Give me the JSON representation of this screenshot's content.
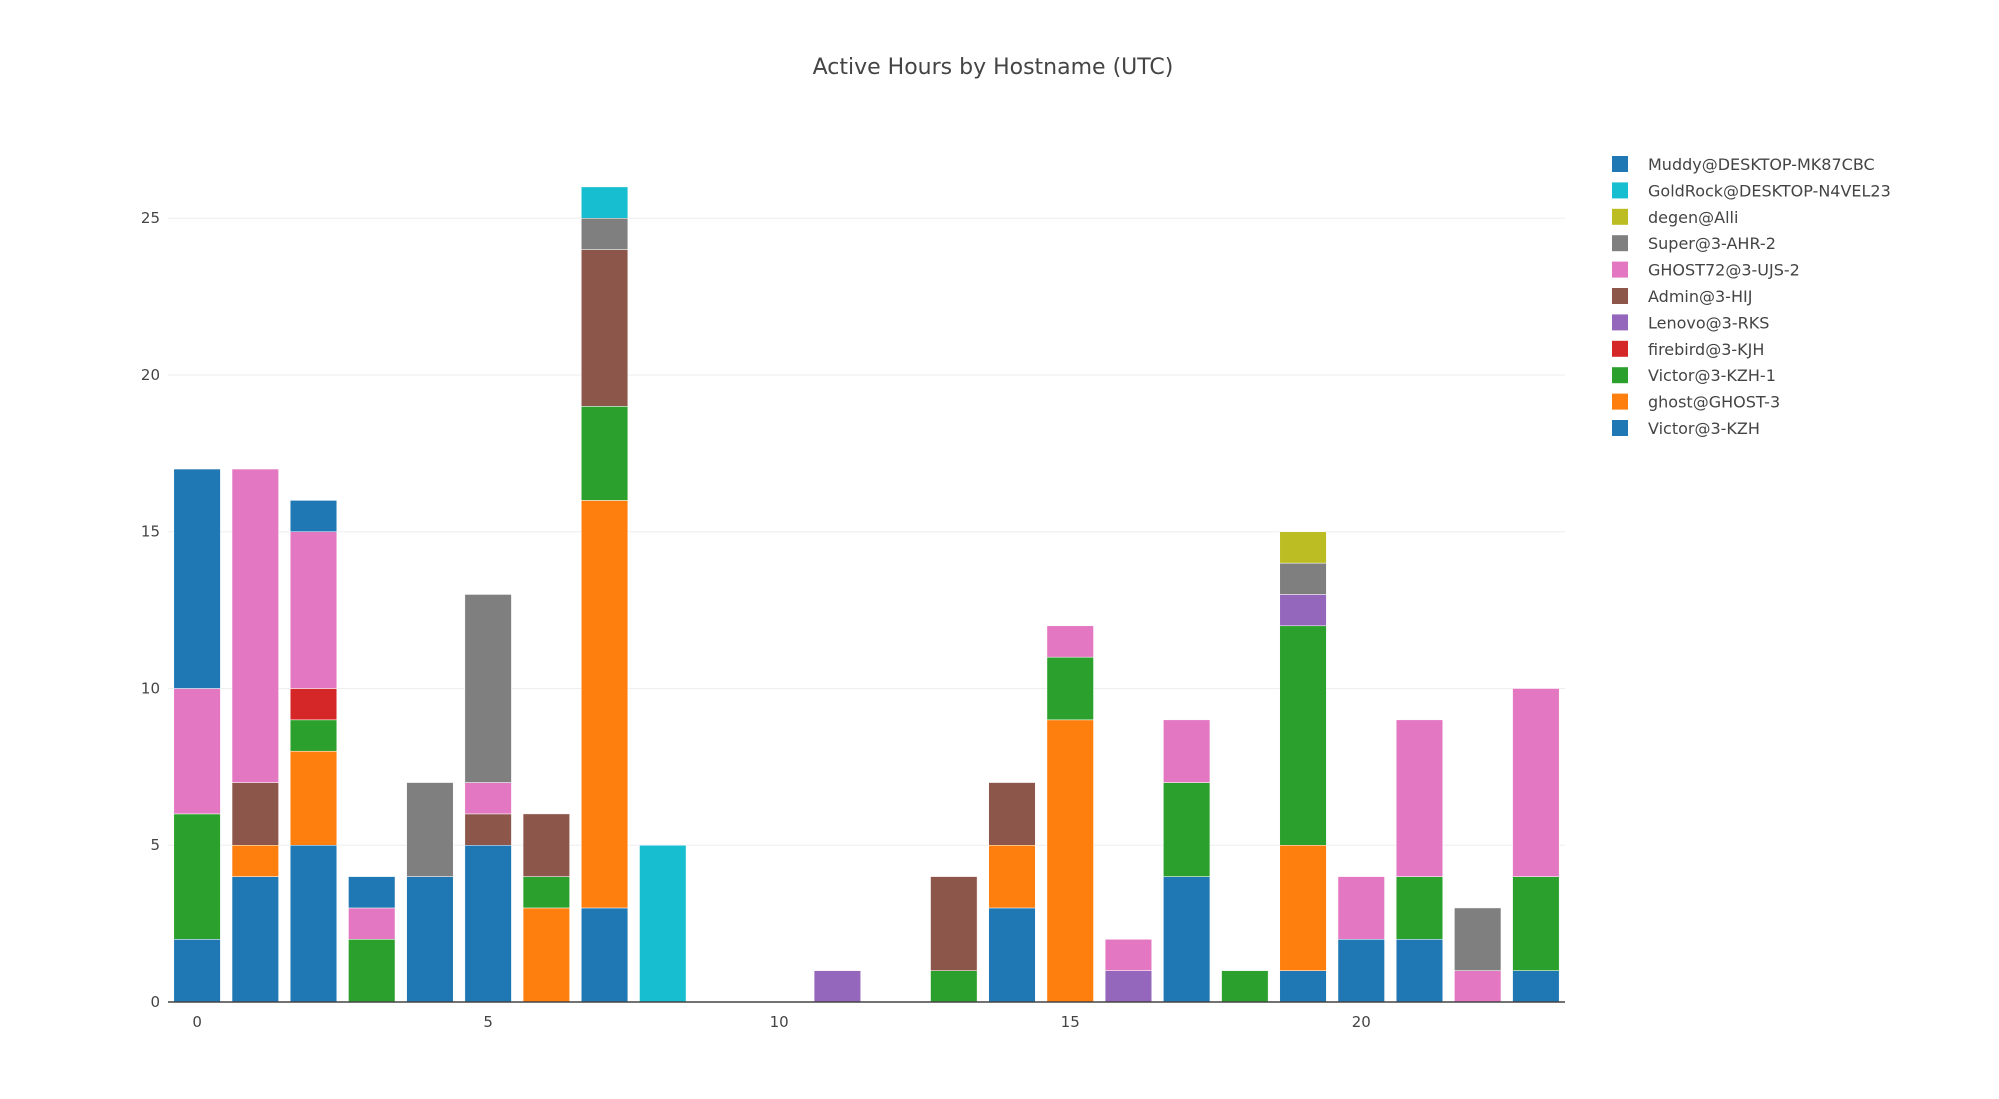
{
  "chart_data": {
    "type": "bar",
    "barmode": "stack",
    "title": "Active Hours by Hostname (UTC)",
    "xlabel": "",
    "ylabel": "",
    "x": [
      0,
      1,
      2,
      3,
      4,
      5,
      6,
      7,
      8,
      9,
      10,
      11,
      12,
      13,
      14,
      15,
      16,
      17,
      18,
      19,
      20,
      21,
      22,
      23
    ],
    "xlim": [
      -0.5,
      23.5
    ],
    "ylim": [
      0,
      27.4
    ],
    "xticks": [
      0,
      5,
      10,
      15,
      20
    ],
    "yticks": [
      0,
      5,
      10,
      15,
      20,
      25
    ],
    "grid": true,
    "legend_position": "right",
    "series": [
      {
        "name": "Victor@3-KZH",
        "color": "#1f77b4",
        "values": [
          2,
          4,
          5,
          0,
          4,
          5,
          0,
          3,
          0,
          0,
          0,
          0,
          0,
          0,
          3,
          0,
          0,
          4,
          0,
          1,
          2,
          2,
          0,
          1
        ]
      },
      {
        "name": "ghost@GHOST-3",
        "color": "#ff7f0e",
        "values": [
          0,
          1,
          3,
          0,
          0,
          0,
          3,
          13,
          0,
          0,
          0,
          0,
          0,
          0,
          2,
          9,
          0,
          0,
          0,
          4,
          0,
          0,
          0,
          0
        ]
      },
      {
        "name": "Victor@3-KZH-1",
        "color": "#2ca02c",
        "values": [
          4,
          0,
          1,
          2,
          0,
          0,
          1,
          3,
          0,
          0,
          0,
          0,
          0,
          1,
          0,
          2,
          0,
          3,
          1,
          7,
          0,
          2,
          0,
          3
        ]
      },
      {
        "name": "firebird@3-KJH",
        "color": "#d62728",
        "values": [
          0,
          0,
          1,
          0,
          0,
          0,
          0,
          0,
          0,
          0,
          0,
          0,
          0,
          0,
          0,
          0,
          0,
          0,
          0,
          0,
          0,
          0,
          0,
          0
        ]
      },
      {
        "name": "Lenovo@3-RKS",
        "color": "#9467bd",
        "values": [
          0,
          0,
          0,
          0,
          0,
          0,
          0,
          0,
          0,
          0,
          0,
          1,
          0,
          0,
          0,
          0,
          1,
          0,
          0,
          1,
          0,
          0,
          0,
          0
        ]
      },
      {
        "name": "Admin@3-HIJ",
        "color": "#8c564b",
        "values": [
          0,
          2,
          0,
          0,
          0,
          1,
          2,
          5,
          0,
          0,
          0,
          0,
          0,
          3,
          2,
          0,
          0,
          0,
          0,
          0,
          0,
          0,
          0,
          0
        ]
      },
      {
        "name": "GHOST72@3-UJS-2",
        "color": "#e377c2",
        "values": [
          4,
          10,
          5,
          1,
          0,
          1,
          0,
          0,
          0,
          0,
          0,
          0,
          0,
          0,
          0,
          1,
          1,
          2,
          0,
          0,
          2,
          5,
          1,
          6
        ]
      },
      {
        "name": "Super@3-AHR-2",
        "color": "#7f7f7f",
        "values": [
          0,
          0,
          0,
          0,
          3,
          6,
          0,
          1,
          0,
          0,
          0,
          0,
          0,
          0,
          0,
          0,
          0,
          0,
          0,
          1,
          0,
          0,
          2,
          0
        ]
      },
      {
        "name": "degen@Alli",
        "color": "#bcbd22",
        "values": [
          0,
          0,
          0,
          0,
          0,
          0,
          0,
          0,
          0,
          0,
          0,
          0,
          0,
          0,
          0,
          0,
          0,
          0,
          0,
          1,
          0,
          0,
          0,
          0
        ]
      },
      {
        "name": "GoldRock@DESKTOP-N4VEL23",
        "color": "#17becf",
        "values": [
          0,
          0,
          0,
          0,
          0,
          0,
          0,
          1,
          5,
          0,
          0,
          0,
          0,
          0,
          0,
          0,
          0,
          0,
          0,
          0,
          0,
          0,
          0,
          0
        ]
      },
      {
        "name": "Muddy@DESKTOP-MK87CBC",
        "color": "#1f77b4",
        "values": [
          7,
          0,
          1,
          1,
          0,
          0,
          0,
          0,
          0,
          0,
          0,
          0,
          0,
          0,
          0,
          0,
          0,
          0,
          0,
          0,
          0,
          0,
          0,
          0
        ]
      }
    ]
  }
}
